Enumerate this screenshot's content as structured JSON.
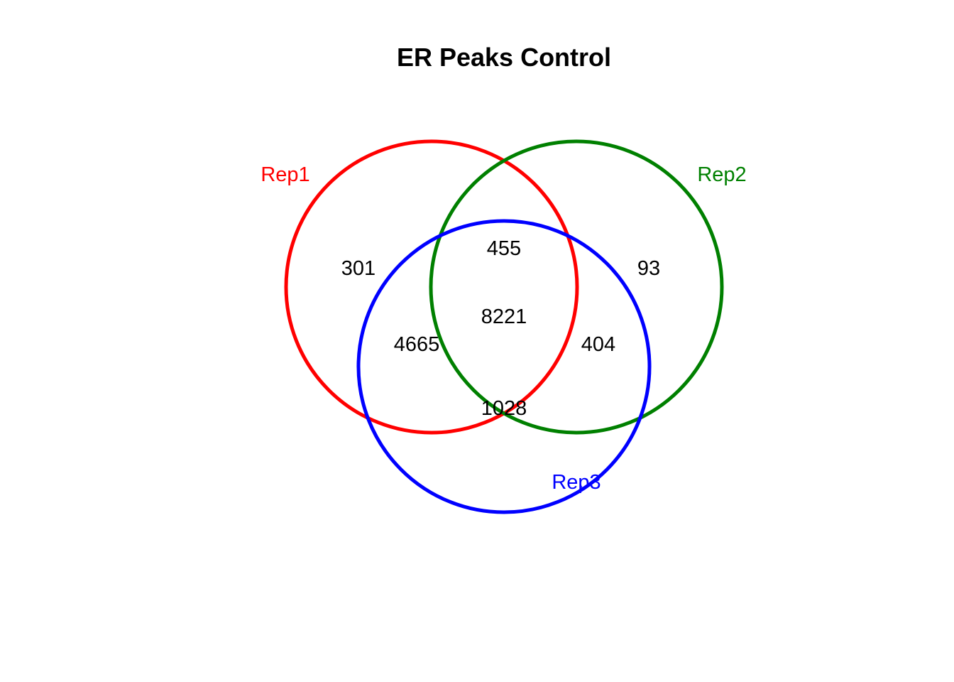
{
  "diagram": {
    "type": "venn-3",
    "title": "ER Peaks Control",
    "sets": [
      {
        "name": "Rep1",
        "color": "#ff0000"
      },
      {
        "name": "Rep2",
        "color": "#008000"
      },
      {
        "name": "Rep3",
        "color": "#0000ff"
      }
    ],
    "regions": {
      "rep1_only": "301",
      "rep2_only": "93",
      "rep1_rep2_only": "455",
      "rep1_rep3_only": "4665",
      "rep2_rep3_only": "404",
      "all_three": "8221",
      "rep3_only": "1028"
    }
  }
}
